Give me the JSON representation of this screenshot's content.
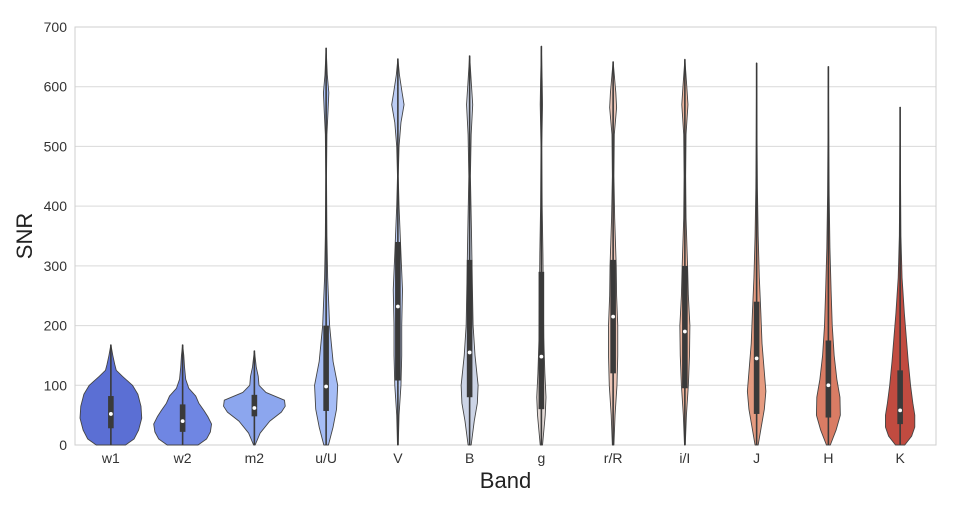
{
  "chart_data": {
    "type": "violin",
    "xlabel": "Band",
    "ylabel": "SNR",
    "ylim": [
      0,
      700
    ],
    "yticks": [
      0,
      100,
      200,
      300,
      400,
      500,
      600,
      700
    ],
    "grid": "horizontal",
    "categories": [
      "w1",
      "w2",
      "m2",
      "u/U",
      "V",
      "B",
      "g",
      "r/R",
      "i/I",
      "J",
      "H",
      "K"
    ],
    "colors": [
      "#5b6fd4",
      "#6f86e3",
      "#8ca6ee",
      "#a6bdf6",
      "#bccdf5",
      "#ccd4e6",
      "#e2d8d4",
      "#ebc5b6",
      "#eeb59d",
      "#e59b80",
      "#d97c64",
      "#c14b40"
    ],
    "violins": [
      {
        "min": 0,
        "max": 168,
        "q1": 28,
        "median": 52,
        "q3": 82,
        "profile": [
          [
            0,
            38
          ],
          [
            10,
            60
          ],
          [
            25,
            72
          ],
          [
            45,
            80
          ],
          [
            65,
            78
          ],
          [
            85,
            70
          ],
          [
            100,
            56
          ],
          [
            115,
            30
          ],
          [
            125,
            14
          ],
          [
            135,
            10
          ],
          [
            150,
            5
          ],
          [
            168,
            0
          ]
        ]
      },
      {
        "min": 0,
        "max": 168,
        "q1": 22,
        "median": 40,
        "q3": 68,
        "profile": [
          [
            0,
            40
          ],
          [
            10,
            62
          ],
          [
            22,
            72
          ],
          [
            35,
            75
          ],
          [
            48,
            65
          ],
          [
            58,
            55
          ],
          [
            70,
            42
          ],
          [
            82,
            34
          ],
          [
            95,
            16
          ],
          [
            110,
            8
          ],
          [
            130,
            5
          ],
          [
            150,
            3
          ],
          [
            168,
            0
          ]
        ]
      },
      {
        "min": 0,
        "max": 158,
        "q1": 48,
        "median": 62,
        "q3": 84,
        "profile": [
          [
            0,
            2
          ],
          [
            20,
            15
          ],
          [
            40,
            40
          ],
          [
            55,
            70
          ],
          [
            65,
            80
          ],
          [
            75,
            78
          ],
          [
            88,
            30
          ],
          [
            100,
            12
          ],
          [
            115,
            10
          ],
          [
            130,
            5
          ],
          [
            158,
            0
          ]
        ]
      },
      {
        "min": 0,
        "max": 665,
        "q1": 57,
        "median": 98,
        "q3": 200,
        "profile": [
          [
            0,
            6
          ],
          [
            30,
            18
          ],
          [
            60,
            27
          ],
          [
            100,
            30
          ],
          [
            140,
            18
          ],
          [
            200,
            9
          ],
          [
            280,
            4
          ],
          [
            350,
            2
          ],
          [
            450,
            1
          ],
          [
            520,
            2
          ],
          [
            560,
            5
          ],
          [
            590,
            7
          ],
          [
            620,
            3
          ],
          [
            665,
            0
          ]
        ]
      },
      {
        "min": 0,
        "max": 647,
        "q1": 108,
        "median": 232,
        "q3": 340,
        "profile": [
          [
            0,
            1
          ],
          [
            50,
            3
          ],
          [
            100,
            8
          ],
          [
            150,
            10
          ],
          [
            200,
            10
          ],
          [
            260,
            12
          ],
          [
            320,
            8
          ],
          [
            400,
            3
          ],
          [
            450,
            1
          ],
          [
            500,
            3
          ],
          [
            540,
            8
          ],
          [
            570,
            16
          ],
          [
            590,
            11
          ],
          [
            620,
            4
          ],
          [
            647,
            0
          ]
        ]
      },
      {
        "min": 0,
        "max": 652,
        "q1": 80,
        "median": 155,
        "q3": 310,
        "profile": [
          [
            0,
            4
          ],
          [
            40,
            12
          ],
          [
            70,
            20
          ],
          [
            100,
            22
          ],
          [
            150,
            14
          ],
          [
            200,
            9
          ],
          [
            270,
            7
          ],
          [
            350,
            5
          ],
          [
            450,
            2
          ],
          [
            520,
            4
          ],
          [
            570,
            8
          ],
          [
            600,
            5
          ],
          [
            652,
            0
          ]
        ]
      },
      {
        "min": 0,
        "max": 668,
        "q1": 60,
        "median": 148,
        "q3": 290,
        "profile": [
          [
            0,
            3
          ],
          [
            50,
            10
          ],
          [
            80,
            12
          ],
          [
            120,
            9
          ],
          [
            180,
            6
          ],
          [
            250,
            5
          ],
          [
            320,
            4
          ],
          [
            400,
            2
          ],
          [
            500,
            1
          ],
          [
            570,
            3
          ],
          [
            610,
            2
          ],
          [
            668,
            0
          ]
        ]
      },
      {
        "min": 0,
        "max": 642,
        "q1": 120,
        "median": 215,
        "q3": 310,
        "profile": [
          [
            0,
            2
          ],
          [
            50,
            5
          ],
          [
            100,
            10
          ],
          [
            150,
            12
          ],
          [
            200,
            12
          ],
          [
            250,
            9
          ],
          [
            300,
            8
          ],
          [
            380,
            4
          ],
          [
            450,
            2
          ],
          [
            520,
            3
          ],
          [
            565,
            9
          ],
          [
            590,
            7
          ],
          [
            620,
            3
          ],
          [
            642,
            0
          ]
        ]
      },
      {
        "min": 0,
        "max": 646,
        "q1": 95,
        "median": 190,
        "q3": 300,
        "profile": [
          [
            0,
            1
          ],
          [
            50,
            4
          ],
          [
            100,
            9
          ],
          [
            150,
            12
          ],
          [
            200,
            13
          ],
          [
            250,
            9
          ],
          [
            300,
            7
          ],
          [
            380,
            3
          ],
          [
            450,
            2
          ],
          [
            520,
            3
          ],
          [
            570,
            8
          ],
          [
            600,
            5
          ],
          [
            646,
            0
          ]
        ]
      },
      {
        "min": 0,
        "max": 640,
        "q1": 52,
        "median": 145,
        "q3": 240,
        "profile": [
          [
            0,
            4
          ],
          [
            30,
            12
          ],
          [
            60,
            20
          ],
          [
            90,
            24
          ],
          [
            130,
            19
          ],
          [
            170,
            14
          ],
          [
            220,
            11
          ],
          [
            280,
            7
          ],
          [
            350,
            4
          ],
          [
            430,
            2
          ],
          [
            520,
            1
          ],
          [
            640,
            0
          ]
        ]
      },
      {
        "min": 0,
        "max": 634,
        "q1": 46,
        "median": 100,
        "q3": 175,
        "profile": [
          [
            0,
            5
          ],
          [
            25,
            20
          ],
          [
            50,
            31
          ],
          [
            80,
            30
          ],
          [
            110,
            22
          ],
          [
            150,
            15
          ],
          [
            200,
            10
          ],
          [
            260,
            7
          ],
          [
            330,
            4
          ],
          [
            420,
            2
          ],
          [
            520,
            1
          ],
          [
            634,
            0
          ]
        ]
      },
      {
        "min": 0,
        "max": 566,
        "q1": 35,
        "median": 58,
        "q3": 125,
        "profile": [
          [
            0,
            12
          ],
          [
            15,
            30
          ],
          [
            30,
            38
          ],
          [
            50,
            38
          ],
          [
            70,
            33
          ],
          [
            100,
            27
          ],
          [
            140,
            21
          ],
          [
            180,
            16
          ],
          [
            220,
            11
          ],
          [
            280,
            5
          ],
          [
            350,
            2
          ],
          [
            450,
            1
          ],
          [
            566,
            0
          ]
        ]
      }
    ]
  }
}
